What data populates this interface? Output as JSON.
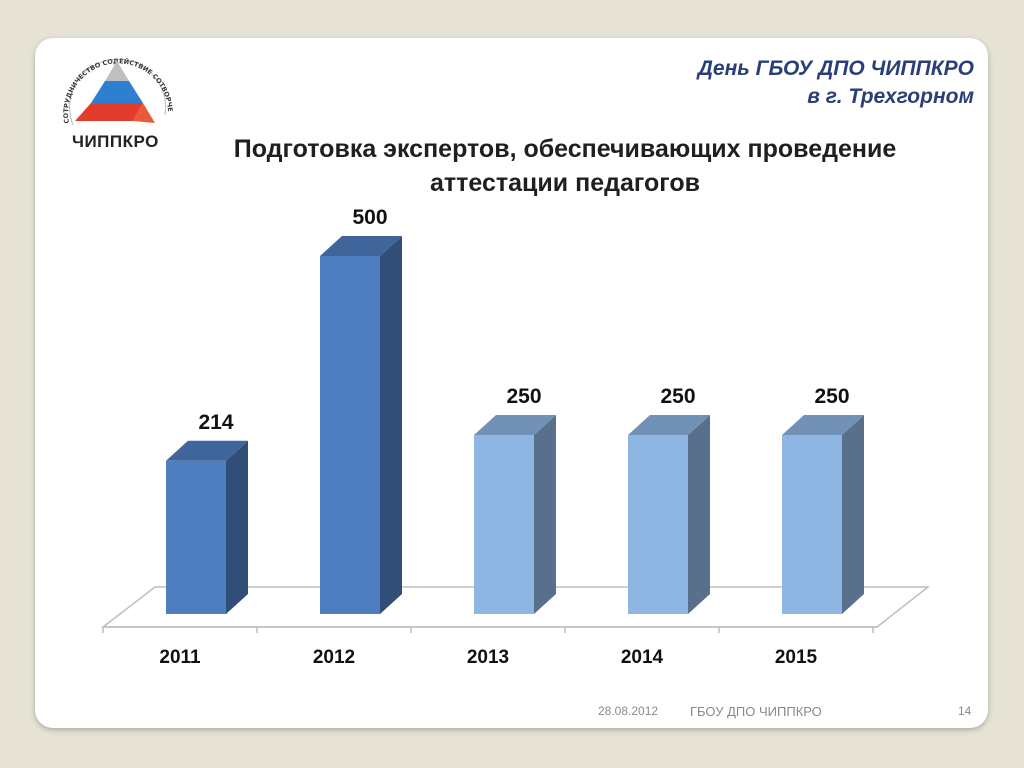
{
  "header": {
    "line1": "День ГБОУ ДПО ЧИППКРО",
    "line2": "в г. Трехгорном"
  },
  "logo": {
    "name": "ЧИППКРО",
    "ring_text": "СОТРУДНИЧЕСТВО СОДЕЙСТВИЕ СОТВОРЧЕСТВО"
  },
  "colors": {
    "bar_dark": "#4f7ec0",
    "bar_light": "#8fb5e3",
    "header_text": "#2a3f7a"
  },
  "chart_data": {
    "type": "bar",
    "title": "Подготовка экспертов, обеспечивающих проведение аттестации педагогов",
    "categories": [
      "2011",
      "2012",
      "2013",
      "2014",
      "2015"
    ],
    "values": [
      214,
      500,
      250,
      250,
      250
    ],
    "data_labels": [
      "214",
      "500",
      "250",
      "250",
      "250"
    ],
    "kind": [
      "actual",
      "actual",
      "planned",
      "planned",
      "planned"
    ],
    "ylim": [
      0,
      550
    ],
    "grid": false,
    "legend": "none"
  },
  "footer": {
    "date": "28.08.2012",
    "org": "ГБОУ ДПО ЧИППКРО",
    "page": "14"
  }
}
